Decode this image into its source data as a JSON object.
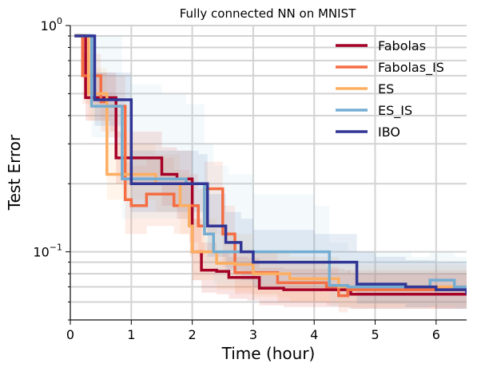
{
  "chart_data": {
    "type": "line",
    "title": "Fully connected NN on MNIST",
    "xlabel": "Time (hour)",
    "ylabel": "Test Error",
    "xlim": [
      0,
      6.5
    ],
    "ylim": [
      0.05,
      1.0
    ],
    "yscale": "log",
    "grid": true,
    "legend_position": "top-right",
    "x_ticks": [
      0,
      1,
      2,
      3,
      4,
      5,
      6
    ],
    "y_ticks": [
      {
        "value": 1.0,
        "mant": "10",
        "exp": "0"
      },
      {
        "value": 0.1,
        "mant": "10",
        "exp": "−1"
      }
    ],
    "series": [
      {
        "name": "Fabolas",
        "color": "#a50026",
        "band_color": "#d73027",
        "x": [
          0.07,
          0.25,
          0.65,
          0.75,
          1.0,
          1.5,
          1.75,
          2.0,
          2.15,
          2.4,
          2.6,
          2.9,
          3.1,
          3.5,
          4.5,
          4.6,
          6.5
        ],
        "y": [
          0.9,
          0.48,
          0.48,
          0.26,
          0.26,
          0.22,
          0.21,
          0.1,
          0.083,
          0.082,
          0.077,
          0.077,
          0.069,
          0.068,
          0.068,
          0.065,
          0.065
        ],
        "lower": [
          0.9,
          0.38,
          0.34,
          0.2,
          0.2,
          0.16,
          0.14,
          0.075,
          0.066,
          0.065,
          0.062,
          0.061,
          0.058,
          0.057,
          0.057,
          0.056,
          0.056
        ],
        "upper": [
          0.92,
          0.62,
          0.62,
          0.34,
          0.34,
          0.29,
          0.28,
          0.14,
          0.11,
          0.1,
          0.095,
          0.094,
          0.085,
          0.084,
          0.083,
          0.08,
          0.078
        ]
      },
      {
        "name": "Fabolas_IS",
        "color": "#f46d43",
        "band_color": "#f46d43",
        "x": [
          0.07,
          0.2,
          0.5,
          0.6,
          0.9,
          1.0,
          1.25,
          1.55,
          1.7,
          1.95,
          2.1,
          2.2,
          2.5,
          2.7,
          2.95,
          3.4,
          4.2,
          4.4,
          4.55,
          6.5
        ],
        "y": [
          0.9,
          0.6,
          0.46,
          0.44,
          0.17,
          0.16,
          0.18,
          0.18,
          0.16,
          0.16,
          0.13,
          0.19,
          0.12,
          0.081,
          0.081,
          0.073,
          0.07,
          0.064,
          0.068,
          0.068
        ],
        "lower": [
          0.9,
          0.45,
          0.34,
          0.32,
          0.12,
          0.12,
          0.13,
          0.13,
          0.12,
          0.11,
          0.095,
          0.12,
          0.085,
          0.065,
          0.065,
          0.06,
          0.058,
          0.054,
          0.056,
          0.056
        ],
        "upper": [
          0.92,
          0.75,
          0.62,
          0.6,
          0.25,
          0.24,
          0.26,
          0.26,
          0.23,
          0.22,
          0.19,
          0.25,
          0.16,
          0.1,
          0.1,
          0.09,
          0.086,
          0.08,
          0.083,
          0.082
        ]
      },
      {
        "name": "ES",
        "color": "#fdae61",
        "band_color": "#fdae61",
        "x": [
          0.07,
          0.3,
          0.6,
          0.8,
          1.0,
          1.4,
          1.8,
          1.95,
          2.0,
          2.2,
          2.4,
          2.7,
          3.0,
          3.4,
          3.6,
          4.0,
          4.4,
          5.0,
          5.5,
          6.0,
          6.5
        ],
        "y": [
          0.9,
          0.5,
          0.22,
          0.22,
          0.22,
          0.2,
          0.16,
          0.13,
          0.1,
          0.1,
          0.089,
          0.088,
          0.08,
          0.08,
          0.076,
          0.076,
          0.07,
          0.07,
          0.07,
          0.07,
          0.07
        ],
        "lower": [
          0.9,
          0.38,
          0.17,
          0.17,
          0.17,
          0.15,
          0.12,
          0.095,
          0.075,
          0.075,
          0.068,
          0.067,
          0.063,
          0.063,
          0.06,
          0.06,
          0.057,
          0.057,
          0.057,
          0.057,
          0.057
        ],
        "upper": [
          0.92,
          0.65,
          0.3,
          0.3,
          0.3,
          0.27,
          0.22,
          0.18,
          0.14,
          0.14,
          0.12,
          0.12,
          0.1,
          0.1,
          0.095,
          0.095,
          0.088,
          0.088,
          0.088,
          0.088,
          0.088
        ]
      },
      {
        "name": "ES_IS",
        "color": "#74add1",
        "band_color": "#abd9e9",
        "x": [
          0.07,
          0.35,
          0.75,
          0.85,
          1.0,
          1.5,
          1.9,
          2.2,
          2.35,
          2.6,
          3.0,
          4.0,
          4.25,
          4.55,
          5.0,
          5.6,
          5.9,
          6.1,
          6.3,
          6.5
        ],
        "y": [
          0.9,
          0.44,
          0.44,
          0.21,
          0.21,
          0.21,
          0.2,
          0.12,
          0.1,
          0.1,
          0.1,
          0.1,
          0.071,
          0.07,
          0.07,
          0.07,
          0.075,
          0.075,
          0.07,
          0.065
        ],
        "lower": [
          0.9,
          0.32,
          0.3,
          0.14,
          0.14,
          0.14,
          0.13,
          0.085,
          0.072,
          0.072,
          0.072,
          0.07,
          0.057,
          0.056,
          0.056,
          0.056,
          0.058,
          0.058,
          0.056,
          0.054
        ],
        "upper": [
          0.93,
          0.9,
          0.9,
          0.6,
          0.55,
          0.5,
          0.45,
          0.3,
          0.24,
          0.22,
          0.18,
          0.16,
          0.11,
          0.1,
          0.1,
          0.095,
          0.1,
          0.1,
          0.095,
          0.09
        ]
      },
      {
        "name": "IBO",
        "color": "#313695",
        "band_color": "#4575b4",
        "x": [
          0.07,
          0.4,
          0.9,
          1.0,
          1.5,
          2.1,
          2.25,
          2.55,
          2.8,
          3.0,
          4.0,
          4.5,
          4.7,
          5.0,
          5.5,
          6.0,
          6.5
        ],
        "y": [
          0.9,
          0.47,
          0.47,
          0.2,
          0.2,
          0.2,
          0.13,
          0.11,
          0.1,
          0.09,
          0.09,
          0.09,
          0.072,
          0.072,
          0.07,
          0.068,
          0.065
        ],
        "lower": [
          0.9,
          0.36,
          0.34,
          0.15,
          0.15,
          0.15,
          0.095,
          0.083,
          0.075,
          0.07,
          0.07,
          0.07,
          0.059,
          0.059,
          0.057,
          0.056,
          0.054
        ],
        "upper": [
          0.92,
          0.62,
          0.62,
          0.28,
          0.28,
          0.27,
          0.18,
          0.15,
          0.14,
          0.125,
          0.12,
          0.12,
          0.1,
          0.095,
          0.092,
          0.09,
          0.086
        ]
      }
    ]
  }
}
